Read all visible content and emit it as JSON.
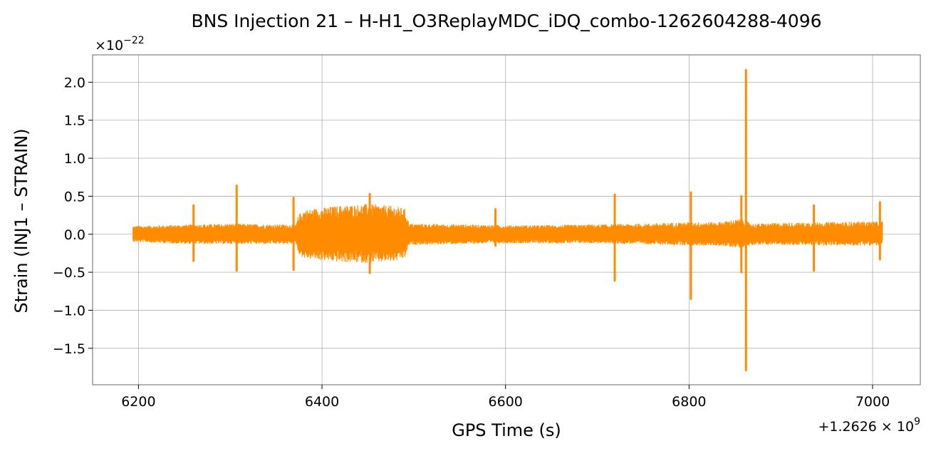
{
  "chart_data": {
    "type": "line",
    "title": "BNS Injection 21 – H-H1_O3ReplayMDC_iDQ_combo-1262604288-4096",
    "xlabel": "GPS Time (s)",
    "ylabel": "Strain (INJ1 – STRAIN)",
    "x_offset_label": "+1.2626",
    "x_offset_exp": "9",
    "y_scale_label": "×10",
    "y_scale_exp": "−22",
    "xlim": [
      6150,
      7052
    ],
    "ylim": [
      -1.98,
      2.36
    ],
    "grid": true,
    "line_color": "#ff8c00",
    "x_ticks": [
      6200,
      6400,
      6600,
      6800,
      7000
    ],
    "x_tick_labels": [
      "6200",
      "6400",
      "6600",
      "6800",
      "7000"
    ],
    "y_ticks": [
      -1.5,
      -1.0,
      -0.5,
      0.0,
      0.5,
      1.0,
      1.5,
      2.0
    ],
    "y_tick_labels": [
      "−1.5",
      "−1.0",
      "−0.5",
      "0.0",
      "0.5",
      "1.0",
      "1.5",
      "2.0"
    ],
    "series": [
      {
        "envelope": [
          {
            "x": 6194,
            "hi": 0.11,
            "lo": -0.1
          },
          {
            "x": 6230,
            "hi": 0.12,
            "lo": -0.12
          },
          {
            "x": 6260,
            "hi": 0.13,
            "lo": -0.13
          },
          {
            "x": 6300,
            "hi": 0.14,
            "lo": -0.13
          },
          {
            "x": 6340,
            "hi": 0.13,
            "lo": -0.13
          },
          {
            "x": 6372,
            "hi": 0.13,
            "lo": -0.13
          },
          {
            "x": 6374,
            "hi": 0.25,
            "lo": -0.25
          },
          {
            "x": 6380,
            "hi": 0.32,
            "lo": -0.32
          },
          {
            "x": 6420,
            "hi": 0.38,
            "lo": -0.37
          },
          {
            "x": 6450,
            "hi": 0.4,
            "lo": -0.38
          },
          {
            "x": 6480,
            "hi": 0.37,
            "lo": -0.36
          },
          {
            "x": 6490,
            "hi": 0.34,
            "lo": -0.32
          },
          {
            "x": 6495,
            "hi": 0.14,
            "lo": -0.14
          },
          {
            "x": 6550,
            "hi": 0.13,
            "lo": -0.13
          },
          {
            "x": 6600,
            "hi": 0.12,
            "lo": -0.12
          },
          {
            "x": 6650,
            "hi": 0.12,
            "lo": -0.12
          },
          {
            "x": 6700,
            "hi": 0.13,
            "lo": -0.12
          },
          {
            "x": 6750,
            "hi": 0.14,
            "lo": -0.13
          },
          {
            "x": 6800,
            "hi": 0.16,
            "lo": -0.15
          },
          {
            "x": 6830,
            "hi": 0.16,
            "lo": -0.15
          },
          {
            "x": 6855,
            "hi": 0.2,
            "lo": -0.18
          },
          {
            "x": 6870,
            "hi": 0.14,
            "lo": -0.14
          },
          {
            "x": 6900,
            "hi": 0.15,
            "lo": -0.14
          },
          {
            "x": 6950,
            "hi": 0.16,
            "lo": -0.15
          },
          {
            "x": 7000,
            "hi": 0.17,
            "lo": -0.15
          },
          {
            "x": 7011,
            "hi": 0.17,
            "lo": -0.15
          }
        ],
        "spikes": [
          {
            "x": 6260,
            "hi": 0.38,
            "lo": -0.35
          },
          {
            "x": 6307,
            "hi": 0.64,
            "lo": -0.48
          },
          {
            "x": 6369,
            "hi": 0.48,
            "lo": -0.47
          },
          {
            "x": 6452,
            "hi": 0.53,
            "lo": -0.51
          },
          {
            "x": 6589,
            "hi": 0.33,
            "lo": -0.15
          },
          {
            "x": 6719,
            "hi": 0.52,
            "lo": -0.61
          },
          {
            "x": 6802,
            "hi": 0.55,
            "lo": -0.85
          },
          {
            "x": 6857,
            "hi": 0.5,
            "lo": -0.5
          },
          {
            "x": 6862,
            "hi": 2.16,
            "lo": -1.79
          },
          {
            "x": 6936,
            "hi": 0.38,
            "lo": -0.48
          },
          {
            "x": 7008,
            "hi": 0.42,
            "lo": -0.33
          }
        ]
      }
    ]
  }
}
